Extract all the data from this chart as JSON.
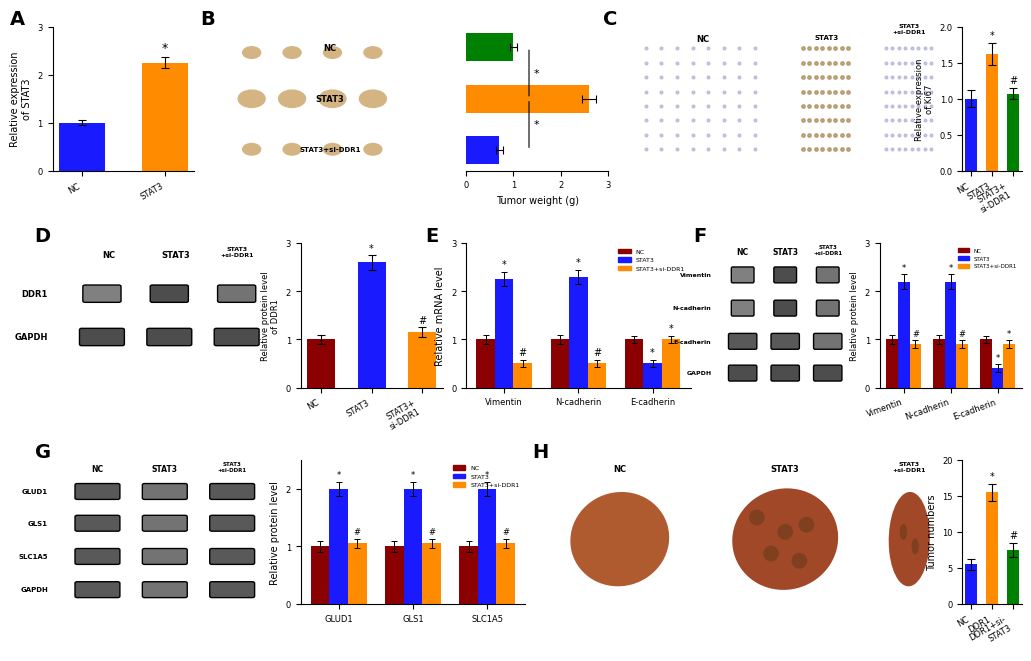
{
  "panel_A": {
    "categories": [
      "NC",
      "STAT3"
    ],
    "values": [
      1.0,
      2.25
    ],
    "errors": [
      0.05,
      0.12
    ],
    "colors": [
      "#1a1aff",
      "#ff8c00"
    ],
    "ylabel": "Relative expression\nof STAT3",
    "ylim": [
      0,
      3
    ],
    "yticks": [
      0,
      1,
      2,
      3
    ],
    "stars": [
      "",
      "*"
    ]
  },
  "panel_B_bar": {
    "categories": [
      "NC",
      "STAT3",
      "STAT3+si-DDR1"
    ],
    "values": [
      1.0,
      2.6,
      0.7
    ],
    "errors": [
      0.08,
      0.15,
      0.07
    ],
    "colors": [
      "#008000",
      "#ff8c00",
      "#1a1aff"
    ],
    "xlabel": "Tumor weight (g)",
    "xlim": [
      0,
      3
    ],
    "xticks": [
      0,
      1,
      2,
      3
    ],
    "orientation": "horizontal"
  },
  "panel_C_bar": {
    "categories": [
      "NC",
      "STAT3",
      "STAT3+si-DDR1"
    ],
    "values": [
      1.0,
      1.62,
      1.07
    ],
    "errors": [
      0.12,
      0.15,
      0.08
    ],
    "colors": [
      "#1a1aff",
      "#ff8c00",
      "#008000"
    ],
    "ylabel": "Relative expression\nof Ki67",
    "ylim": [
      0,
      2.0
    ],
    "yticks": [
      0.0,
      0.5,
      1.0,
      1.5,
      2.0
    ],
    "stars": [
      "",
      "*",
      "#"
    ]
  },
  "panel_D_bar": {
    "categories": [
      "NC",
      "STAT3",
      "STAT3+si-DDR1"
    ],
    "values": [
      1.0,
      2.6,
      1.15
    ],
    "errors": [
      0.1,
      0.15,
      0.1
    ],
    "colors": [
      "#8b0000",
      "#1a1aff",
      "#ff8c00"
    ],
    "ylabel": "Relative protein level\nof DDR1",
    "ylim": [
      0,
      3
    ],
    "yticks": [
      0,
      1,
      2,
      3
    ],
    "stars": [
      "",
      "*",
      "#"
    ]
  },
  "panel_E": {
    "groups": [
      "Vimentin",
      "N-cadherin",
      "E-cadherin"
    ],
    "nc_values": [
      1.0,
      1.0,
      1.0
    ],
    "stat3_values": [
      2.25,
      2.3,
      0.5
    ],
    "stat3siDDR1_values": [
      0.5,
      0.5,
      1.0
    ],
    "nc_errors": [
      0.1,
      0.1,
      0.08
    ],
    "stat3_errors": [
      0.15,
      0.15,
      0.08
    ],
    "stat3siDDR1_errors": [
      0.08,
      0.08,
      0.08
    ],
    "colors": [
      "#8b0000",
      "#1a1aff",
      "#ff8c00"
    ],
    "ylabel": "Relative mRNA level",
    "ylim": [
      0,
      3
    ],
    "yticks": [
      0,
      1,
      2,
      3
    ],
    "legend_labels": [
      "NC",
      "STAT3",
      "STAT3+si-DDR1"
    ]
  },
  "panel_F_bar": {
    "groups": [
      "Vimentin",
      "N-cadherin",
      "E-cadherin"
    ],
    "nc_values": [
      1.0,
      1.0,
      1.0
    ],
    "stat3_values": [
      2.2,
      2.2,
      0.4
    ],
    "stat3siDDR1_values": [
      0.9,
      0.9,
      0.9
    ],
    "nc_errors": [
      0.1,
      0.1,
      0.08
    ],
    "stat3_errors": [
      0.15,
      0.15,
      0.08
    ],
    "stat3siDDR1_errors": [
      0.08,
      0.08,
      0.08
    ],
    "colors": [
      "#8b0000",
      "#1a1aff",
      "#ff8c00"
    ],
    "ylabel": "Relative protein level",
    "ylim": [
      0,
      3
    ],
    "yticks": [
      0,
      1,
      2,
      3
    ],
    "legend_labels": [
      "NC",
      "STAT3",
      "STAT3+si-DDR1"
    ]
  },
  "panel_G_bar": {
    "groups": [
      "GLUD1",
      "GLS1",
      "SLC1A5"
    ],
    "nc_values": [
      1.0,
      1.0,
      1.0
    ],
    "stat3_values": [
      2.0,
      2.0,
      2.0
    ],
    "stat3siDDR1_values": [
      1.05,
      1.05,
      1.05
    ],
    "nc_errors": [
      0.1,
      0.1,
      0.1
    ],
    "stat3_errors": [
      0.12,
      0.12,
      0.12
    ],
    "stat3siDDR1_errors": [
      0.08,
      0.08,
      0.08
    ],
    "colors": [
      "#8b0000",
      "#1a1aff",
      "#ff8c00"
    ],
    "ylabel": "Relative protein level",
    "ylim": [
      0,
      2.5
    ],
    "yticks": [
      0,
      1,
      2
    ],
    "legend_labels": [
      "NC",
      "STAT3",
      "STAT3+si-DDR1"
    ]
  },
  "panel_H_bar": {
    "categories": [
      "NC",
      "DDR1",
      "DDR1+si-STAT3"
    ],
    "values": [
      5.5,
      15.5,
      7.5
    ],
    "errors": [
      0.8,
      1.2,
      1.0
    ],
    "colors": [
      "#1a1aff",
      "#ff8c00",
      "#008000"
    ],
    "ylabel": "Tumor numbers",
    "ylim": [
      0,
      20
    ],
    "yticks": [
      0,
      5,
      10,
      15,
      20
    ],
    "stars": [
      "",
      "*",
      "#"
    ]
  },
  "bg_color": "#ffffff",
  "panel_labels_color": "#000000",
  "panel_label_fontsize": 14,
  "axis_fontsize": 7,
  "tick_fontsize": 6,
  "bar_width": 0.25
}
